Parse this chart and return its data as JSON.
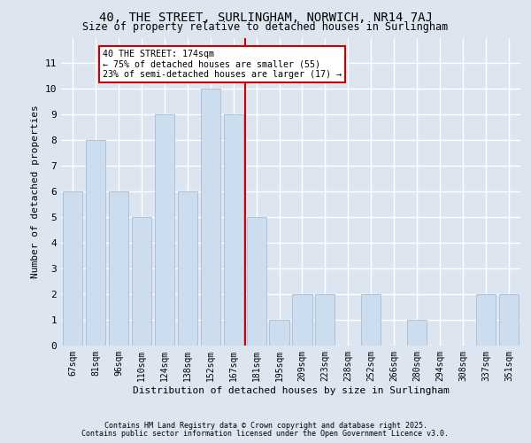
{
  "title1": "40, THE STREET, SURLINGHAM, NORWICH, NR14 7AJ",
  "title2": "Size of property relative to detached houses in Surlingham",
  "xlabel": "Distribution of detached houses by size in Surlingham",
  "ylabel": "Number of detached properties",
  "categories": [
    "67sqm",
    "81sqm",
    "96sqm",
    "110sqm",
    "124sqm",
    "138sqm",
    "152sqm",
    "167sqm",
    "181sqm",
    "195sqm",
    "209sqm",
    "223sqm",
    "238sqm",
    "252sqm",
    "266sqm",
    "280sqm",
    "294sqm",
    "308sqm",
    "337sqm",
    "351sqm"
  ],
  "values": [
    6,
    8,
    6,
    5,
    9,
    6,
    10,
    9,
    5,
    1,
    2,
    2,
    0,
    2,
    0,
    1,
    0,
    0,
    2,
    2
  ],
  "bar_color": "#ccddf0",
  "bar_edge_color": "#a8bdd4",
  "vline_x": 7.5,
  "vline_color": "#cc0000",
  "annotation_text": "40 THE STREET: 174sqm\n← 75% of detached houses are smaller (55)\n23% of semi-detached houses are larger (17) →",
  "annotation_box_color": "#ffffff",
  "annotation_box_edge": "#cc0000",
  "ylim": [
    0,
    12
  ],
  "yticks": [
    0,
    1,
    2,
    3,
    4,
    5,
    6,
    7,
    8,
    9,
    10,
    11,
    12
  ],
  "bg_color": "#dde5f0",
  "plot_bg_color": "#dde5f0",
  "grid_color": "#ffffff",
  "footer1": "Contains HM Land Registry data © Crown copyright and database right 2025.",
  "footer2": "Contains public sector information licensed under the Open Government Licence v3.0."
}
